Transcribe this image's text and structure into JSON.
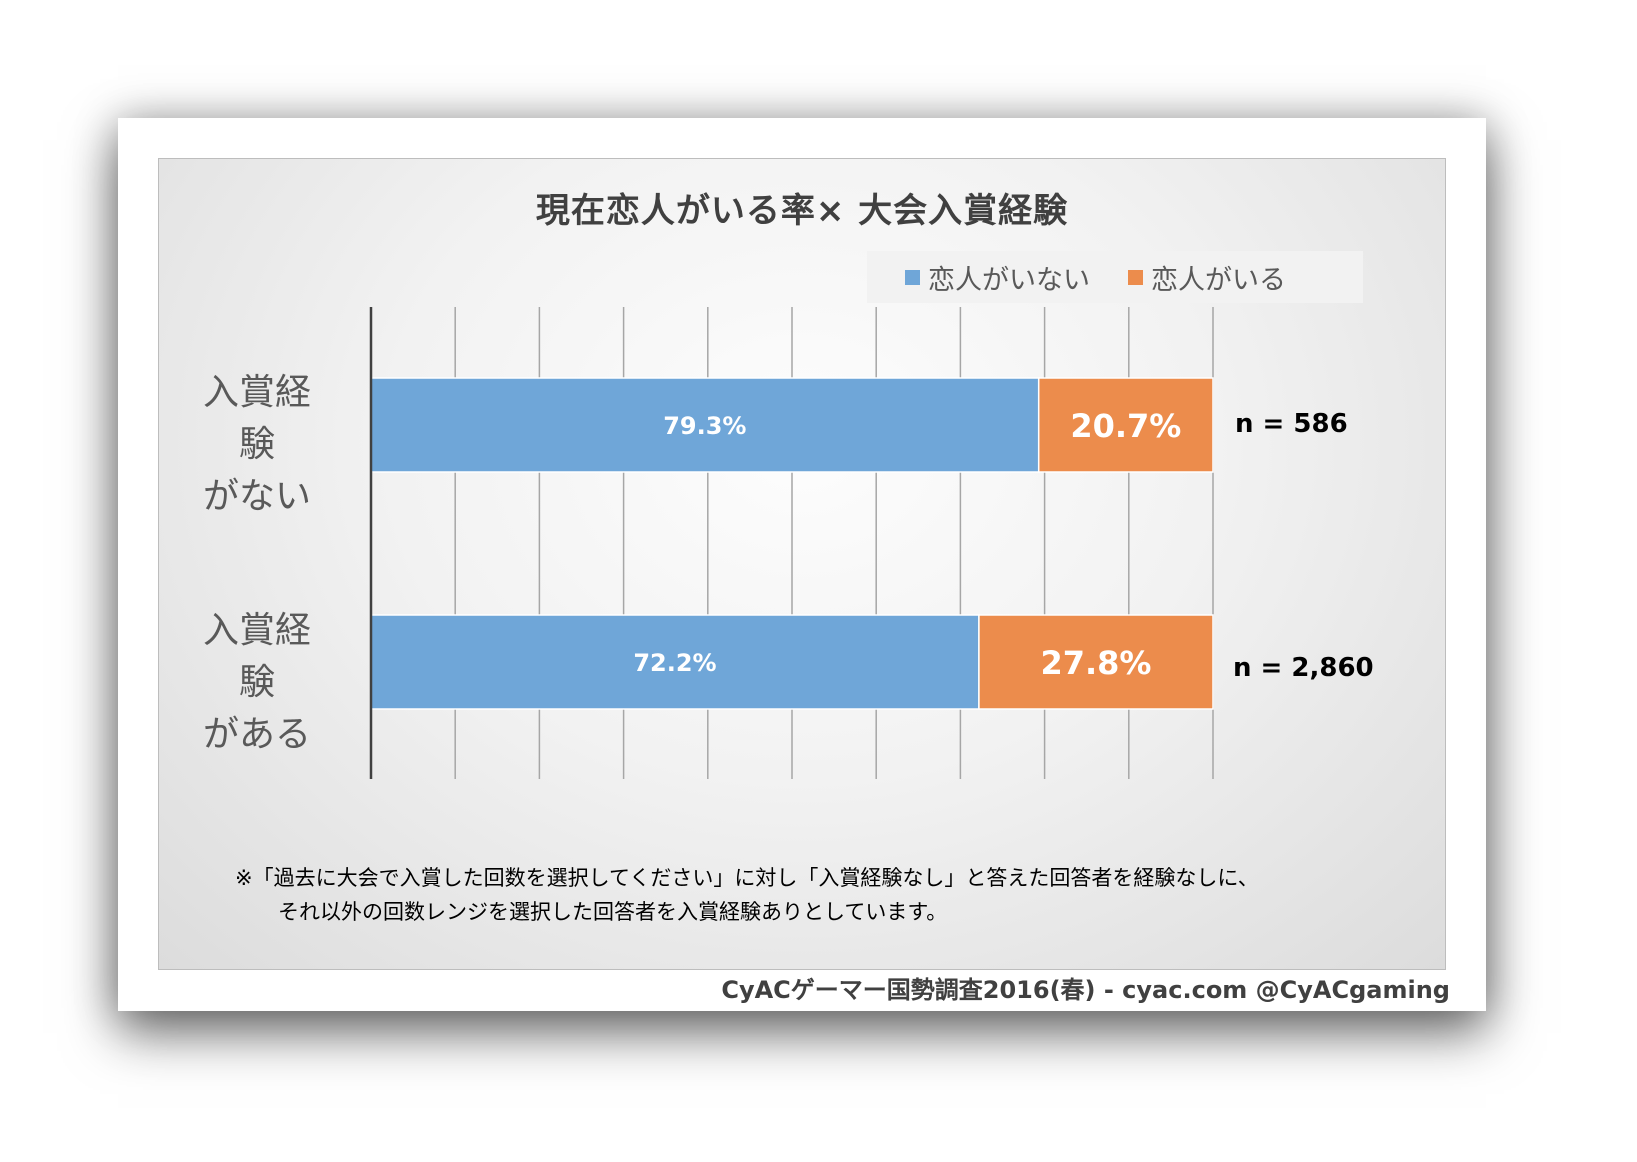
{
  "chart_data": {
    "type": "bar",
    "orientation": "horizontal",
    "stacked": "percent",
    "title": "現在恋人がいる率× 大会入賞経験",
    "categories": [
      [
        "入賞経験",
        "がない"
      ],
      [
        "入賞経験",
        "がある"
      ]
    ],
    "series": [
      {
        "name": "恋人がいない",
        "color": "#6fa6d8",
        "values": [
          79.3,
          72.2
        ],
        "labels": [
          "79.3%",
          "72.2%"
        ]
      },
      {
        "name": "恋人がいる",
        "color": "#ec8c4c",
        "values": [
          20.7,
          27.8
        ],
        "labels": [
          "20.7%",
          "27.8%"
        ]
      }
    ],
    "sample_sizes": [
      "n = 586",
      "n = 2,860"
    ],
    "xlim": [
      0,
      100
    ],
    "grid": true,
    "legend_position": "top-right"
  },
  "footnote": {
    "line1": "※「過去に大会で入賞した回数を選択してください」に対し「入賞経験なし」と答えた回答者を経験なしに、",
    "line2": "それ以外の回数レンジを選択した回答者を入賞経験ありとしています。"
  },
  "credit": "CyACゲーマー国勢調査2016(春) - cyac.com @CyACgaming"
}
